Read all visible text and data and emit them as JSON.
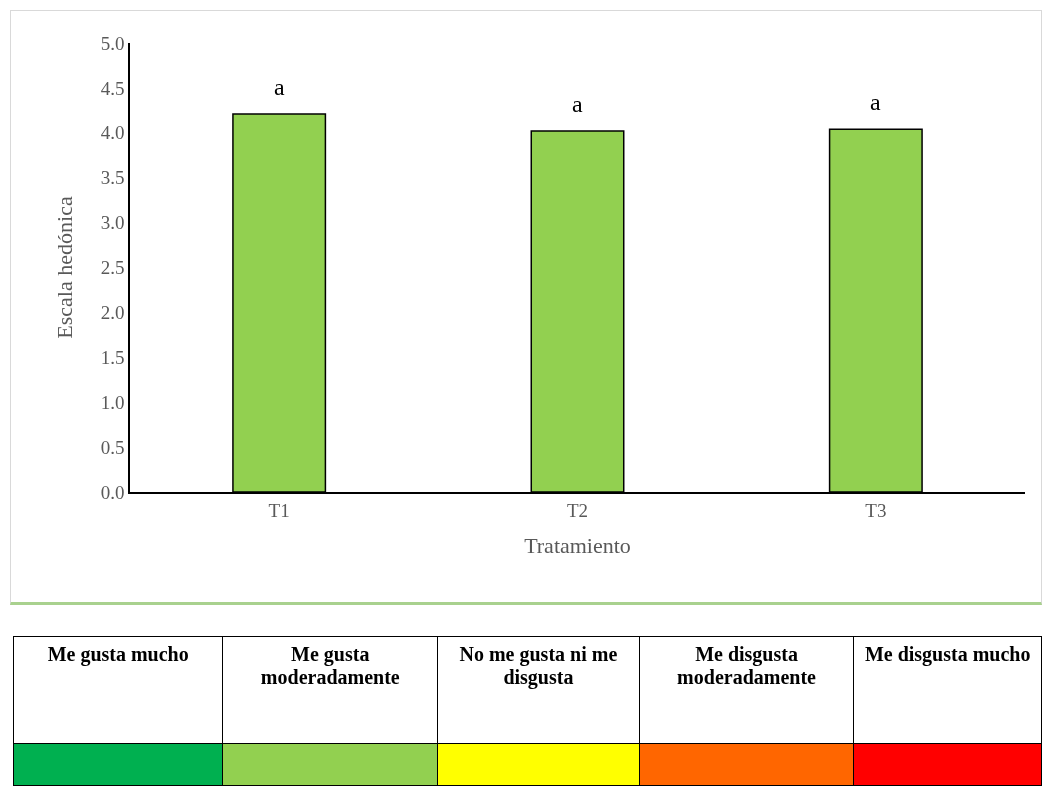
{
  "chart_data": {
    "type": "bar",
    "xlabel": "Tratamiento",
    "ylabel": "Escala hedónica",
    "categories": [
      "T1",
      "T2",
      "T3"
    ],
    "values": [
      4.21,
      4.02,
      4.04
    ],
    "color": "#92d050",
    "ylim": [
      0,
      5
    ],
    "yticks": [
      {
        "value": 0,
        "label": "0.0"
      },
      {
        "value": 0.5,
        "label": "0.5"
      },
      {
        "value": 1,
        "label": "1.0"
      },
      {
        "value": 1.5,
        "label": "1.5"
      },
      {
        "value": 2,
        "label": "2.0"
      },
      {
        "value": 2.5,
        "label": "2.5"
      },
      {
        "value": 3,
        "label": "3.0"
      },
      {
        "value": 3.5,
        "label": "3.5"
      },
      {
        "value": 4,
        "label": "4.0"
      },
      {
        "value": 4.5,
        "label": "4.5"
      },
      {
        "value": 5,
        "label": "5.0"
      }
    ],
    "grid": false,
    "legend": false,
    "annotations": [
      {
        "text": "a",
        "x": "T1",
        "y": 4.21
      },
      {
        "text": "a",
        "x": "T2",
        "y": 4.02
      },
      {
        "text": "a",
        "x": "T3",
        "y": 4.04
      },
      "Me gusta mucho",
      "Me gusta moderadamente",
      "No me gusta ni me disgusta",
      "Me disgusta moderadamente",
      "Me disgusta mucho"
    ]
  }
}
